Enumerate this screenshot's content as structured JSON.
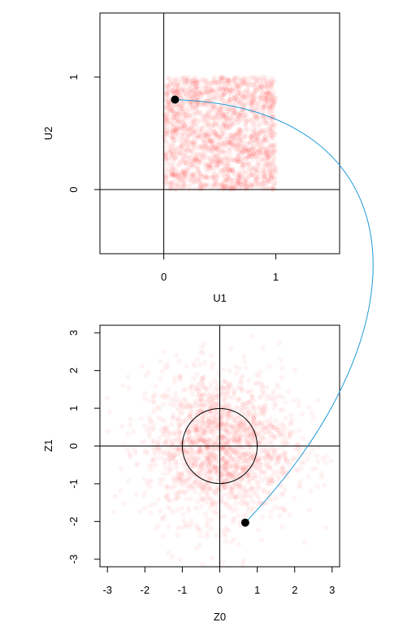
{
  "chart_data": [
    {
      "type": "scatter",
      "title": "",
      "xlabel": "U1",
      "ylabel": "U2",
      "xlim": [
        -0.57,
        1.57
      ],
      "ylim": [
        -0.57,
        1.57
      ],
      "xticks": [
        0,
        1
      ],
      "yticks": [
        0,
        1
      ],
      "xtick_labels": [
        "0",
        "1"
      ],
      "ytick_labels": [
        "0",
        "1"
      ],
      "reference_lines": {
        "x": 0,
        "y": 0
      },
      "cloud": {
        "distribution": "uniform",
        "x_range": [
          0,
          1
        ],
        "y_range": [
          0,
          1
        ],
        "color": "#ff0000"
      },
      "highlight_point": {
        "x": 0.1,
        "y": 0.8
      }
    },
    {
      "type": "scatter",
      "title": "",
      "xlabel": "Z0",
      "ylabel": "Z1",
      "xlim": [
        -3.2,
        3.2
      ],
      "ylim": [
        -3.2,
        3.2
      ],
      "xticks": [
        -3,
        -2,
        -1,
        0,
        1,
        2,
        3
      ],
      "yticks": [
        -3,
        -2,
        -1,
        0,
        1,
        2,
        3
      ],
      "xtick_labels": [
        "-3",
        "-2",
        "-1",
        "0",
        "1",
        "2",
        "3"
      ],
      "ytick_labels": [
        "-3",
        "-2",
        "-1",
        "0",
        "1",
        "2",
        "3"
      ],
      "reference_lines": {
        "x": 0,
        "y": 0
      },
      "circle": {
        "cx": 0,
        "cy": 0,
        "r": 1
      },
      "cloud": {
        "distribution": "normal",
        "mean": [
          0,
          0
        ],
        "sd": 1,
        "color": "#ff0000"
      },
      "highlight_point": {
        "x": 0.68,
        "y": -2.03
      }
    }
  ],
  "connector": {
    "color": "#1f9bd6"
  }
}
